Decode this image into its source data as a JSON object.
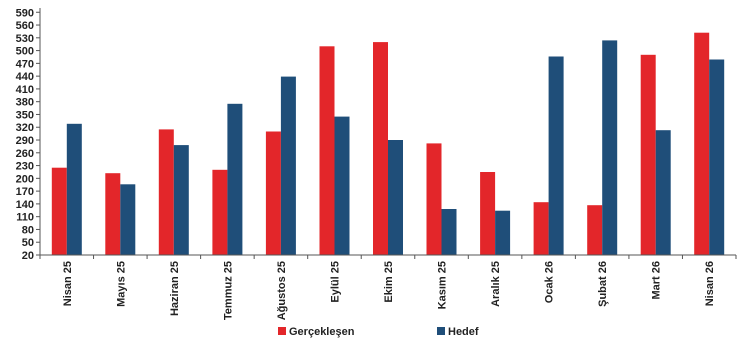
{
  "colors": {
    "actual": "#e3262a",
    "target": "#1f4e79",
    "axis": "#555555"
  },
  "chart_data": {
    "type": "bar",
    "categories": [
      "Nisan 25",
      "Mayıs 25",
      "Haziran 25",
      "Temmuz 25",
      "Ağustos 25",
      "Eylül 25",
      "Ekim 25",
      "Kasım 25",
      "Aralık 25",
      "Ocak 26",
      "Şubat 26",
      "Mart 26",
      "Nisan 26"
    ],
    "series": [
      {
        "name": "Gerçekleşen",
        "values": [
          225,
          212,
          315,
          220,
          310,
          510,
          520,
          282,
          215,
          144,
          137,
          490,
          542
        ]
      },
      {
        "name": "Hedef",
        "values": [
          328,
          186,
          278,
          375,
          439,
          345,
          290,
          128,
          124,
          486,
          524,
          313,
          479
        ]
      }
    ],
    "yticks": [
      20,
      50,
      80,
      110,
      140,
      170,
      200,
      230,
      260,
      290,
      320,
      350,
      380,
      410,
      440,
      470,
      500,
      530,
      560,
      590
    ],
    "ylim": [
      20,
      600
    ],
    "grid": false,
    "legend_position": "bottom",
    "title": "",
    "xlabel": "",
    "ylabel": ""
  }
}
